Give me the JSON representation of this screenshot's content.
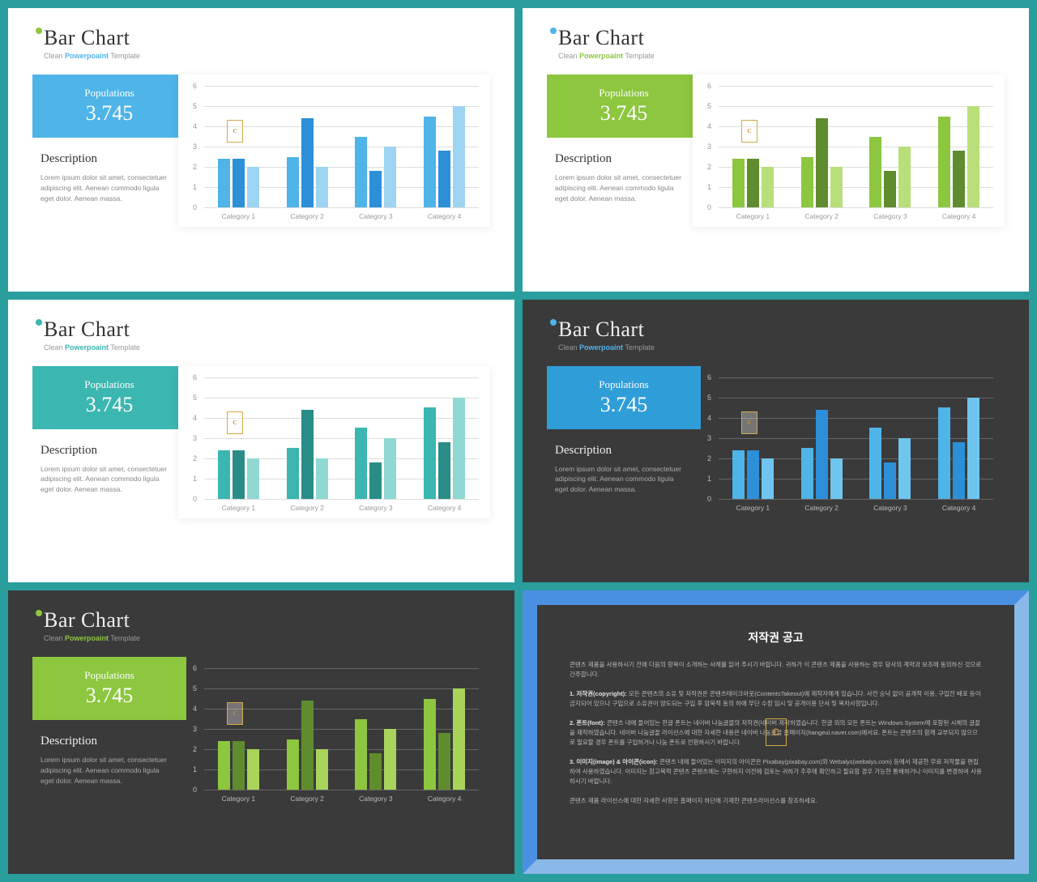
{
  "shared": {
    "title": "Bar Chart",
    "subtitle_pre": "Clean ",
    "subtitle_accent": "Powerpoaint",
    "subtitle_post": " Template",
    "badge_title": "Populations",
    "badge_value": "3.745",
    "desc_head": "Description",
    "desc_body": "Lorem ipsum dolor sit amet, consectetuer adipiscing elit. Aenean commodo ligula eget dolor. Aenean massa.",
    "chart": {
      "type": "bar",
      "categories": [
        "Category 1",
        "Category 2",
        "Category 3",
        "Category 4"
      ],
      "series": [
        [
          2.4,
          2.5,
          3.5,
          4.5
        ],
        [
          2.4,
          4.4,
          1.8,
          2.8
        ],
        [
          2.0,
          2.0,
          3.0,
          5.0
        ]
      ],
      "ylim": [
        0,
        6
      ],
      "yticks": [
        0,
        1,
        2,
        3,
        4,
        5,
        6
      ]
    }
  },
  "slides": [
    {
      "theme": "light",
      "dot_color": "#8dc63f",
      "accent_color": "#4fb4e8",
      "badge_bg": "#4fb4e8",
      "bar_colors": [
        "#4fb4e8",
        "#2c8fd8",
        "#9dd4f2"
      ]
    },
    {
      "theme": "light",
      "dot_color": "#4fb4e8",
      "accent_color": "#8dc63f",
      "badge_bg": "#8dc63f",
      "bar_colors": [
        "#8dc63f",
        "#5f8c2e",
        "#b8df7a"
      ]
    },
    {
      "theme": "light",
      "dot_color": "#3bb6b0",
      "accent_color": "#3bb6b0",
      "badge_bg": "#3bb6b0",
      "bar_colors": [
        "#3bb6b0",
        "#2a8c87",
        "#8fd8d3"
      ]
    },
    {
      "theme": "dark",
      "dot_color": "#4fb4e8",
      "accent_color": "#4fb4e8",
      "badge_bg": "#2f9dd8",
      "bar_colors": [
        "#4fb4e8",
        "#2c8fd8",
        "#6fc5ee"
      ]
    },
    {
      "theme": "dark",
      "dot_color": "#8dc63f",
      "accent_color": "#8dc63f",
      "badge_bg": "#8dc63f",
      "bar_colors": [
        "#8dc63f",
        "#5f8c2e",
        "#a8d45a"
      ]
    }
  ],
  "copyright": {
    "title": "저작권 공고",
    "p1": "콘텐츠 제품을 사용하시기 전에 다음의 항목이 소개하는 사례를 읽어 주시기 바랍니다. 귀하가 이 콘텐츠 제품을 사용하는 경우 당사의 계약과 보조에 동의하신 것으로 간주합니다.",
    "p2_head": "1. 저작권(copyright):",
    "p2_body": "모든 콘텐츠의 소유 및 저작권은 콘텐츠테이크아웃(ContentsTakeout)에 제작자에게 있습니다. 사전 승낙 없이 공개적 이용, 구입전 배포 등이 금지되어 있으나 구입으로 소유권이 양도되는 구입 후 암묵적 동의 하에 무단 수정 임시 및 공개이용 단서 및 목차사항입니다.",
    "p3_head": "2. 폰트(font):",
    "p3_body": "콘텐츠 내에 들어있는 한글 폰트는 네이버 나눔글꼴의 저작권(네이버 제작하였습니다. 한글 외의 모든 폰트는 Windows System에 포함된 시체의 글꼴을 제작하였습니다. 네이버 나눔글꼴 라이선스에 대한 자세한 내용은 네이버 나눔글꼴 홈페이지(hangeul.naver.com)에서요. 폰트는 콘텐츠의 함께 교부되지 않으므로 필요할 경우 폰트를 구입하거나 나눔 폰트로 전환하시기 바랍니다.",
    "p4_head": "3. 이미지(image) & 아이콘(icon):",
    "p4_body": "콘텐츠 내에 들어있는 이미지의 아이콘은 Pixabay(pixabay.com)와 Webalys(webalys.com) 등에서 제공한 무료 저작물을 편집하여 사용하였습니다. 이미지는 참고목적 콘텐츠 콘텐츠에는 구현하지 이전에 검토는 귀하가 추후에 확인하고 필요함 경우 가능한 통해하거나 이미지를 변경하여 사용하시기 바랍니다.",
    "p5": "콘텐츠 제품 라이선스에 대한 자세한 사항은 홈페이지 하단에 기재한 콘텐츠라이선스를 참조하세요."
  }
}
